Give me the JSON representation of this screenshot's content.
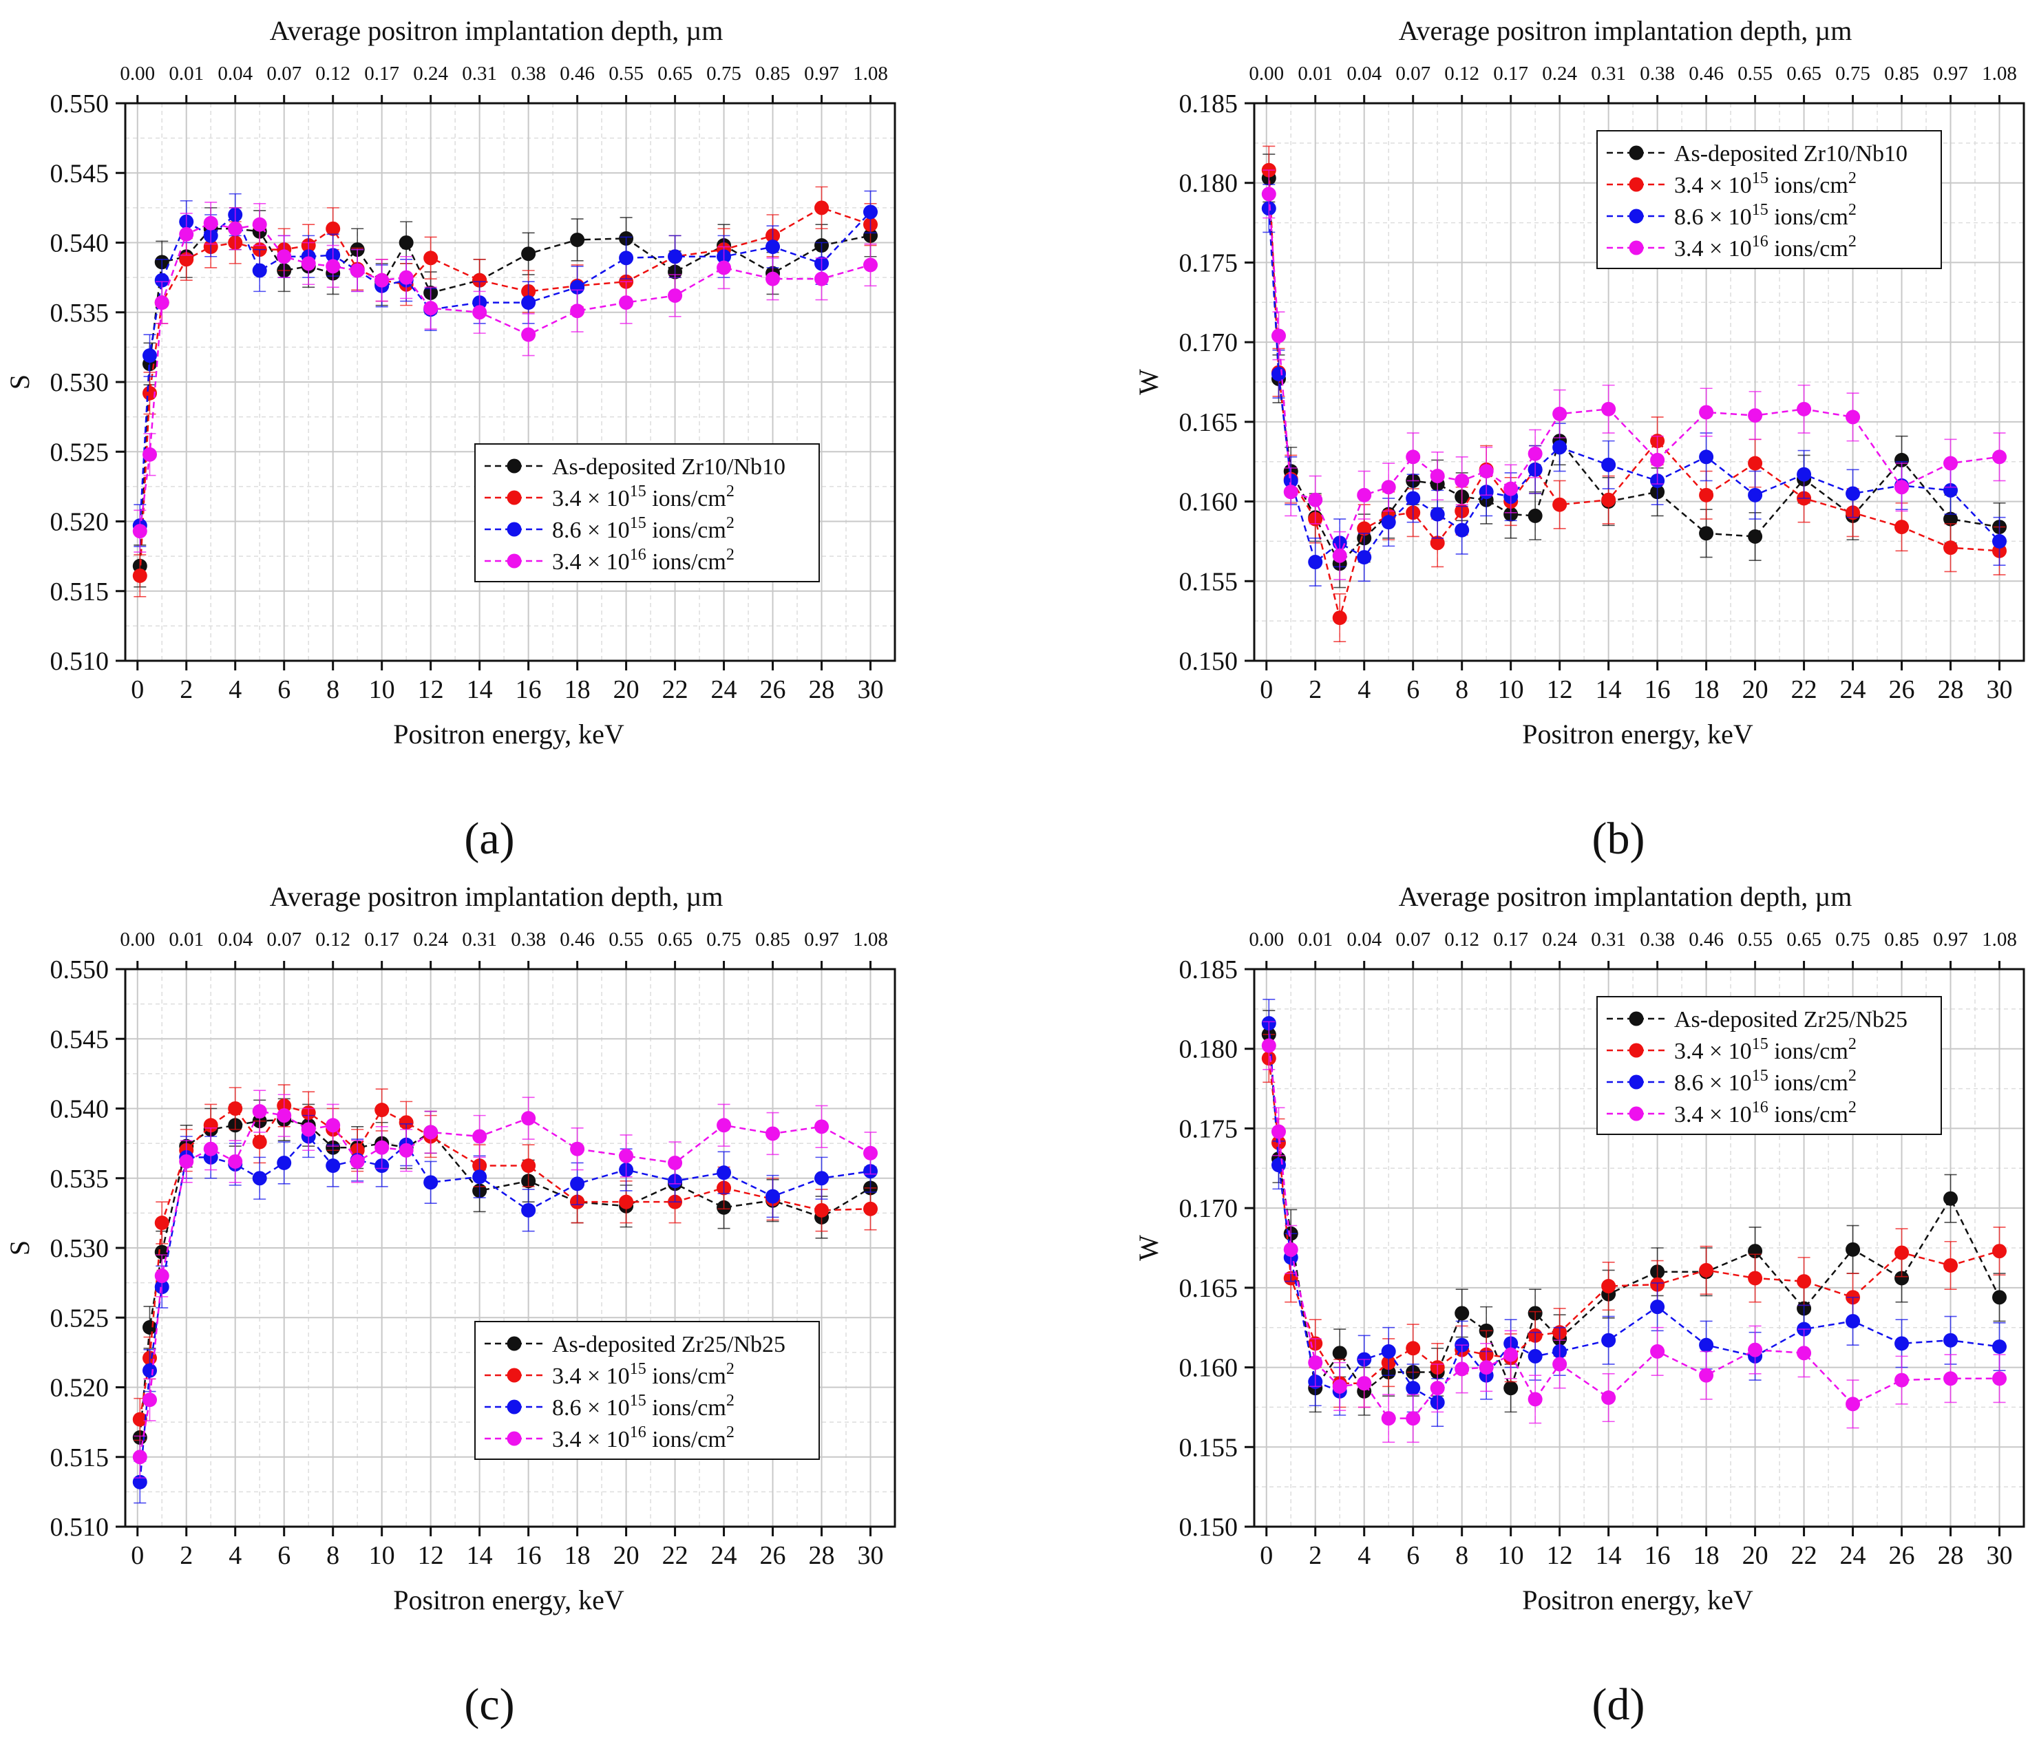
{
  "chart_data": [
    {
      "type": "scatter",
      "panel_label": "(a)",
      "title_top_axis": "Average positron implantation depth, µm",
      "top_tick_labels": [
        "0.00",
        "0.01",
        "0.04",
        "0.07",
        "0.12",
        "0.17",
        "0.24",
        "0.31",
        "0.38",
        "0.46",
        "0.55",
        "0.65",
        "0.75",
        "0.85",
        "0.97",
        "1.08"
      ],
      "xlabel": "Positron energy, keV",
      "ylabel": "S",
      "xlim": [
        -0.5,
        31
      ],
      "ylim": [
        0.51,
        0.55
      ],
      "x_ticks": [
        0,
        2,
        4,
        6,
        8,
        10,
        12,
        14,
        16,
        18,
        20,
        22,
        24,
        26,
        28,
        30
      ],
      "y_ticks": [
        "0.510",
        "0.515",
        "0.520",
        "0.525",
        "0.530",
        "0.535",
        "0.540",
        "0.545",
        "0.550"
      ],
      "legend_position": "center-right",
      "x": [
        0.1,
        0.5,
        1,
        2,
        3,
        4,
        5,
        6,
        7,
        8,
        9,
        10,
        11,
        12,
        14,
        16,
        18,
        20,
        22,
        24,
        26,
        28,
        30
      ],
      "series": [
        {
          "name": "As-deposited Zr10/Nb10",
          "legend_main": "As-deposited Zr10/Nb10",
          "legend_sup": "",
          "legend_suffix": "",
          "color": "#111111",
          "values": [
            0.5168,
            0.5313,
            0.5386,
            0.539,
            0.541,
            0.541,
            0.5408,
            0.538,
            0.5383,
            0.5378,
            0.5395,
            0.537,
            0.54,
            0.5364,
            0.5373,
            0.5392,
            0.5402,
            0.5403,
            0.5379,
            0.5398,
            0.5378,
            0.5398,
            0.5405
          ]
        },
        {
          "name": "3.4 × 10^15 ions/cm^2",
          "legend_main": "3.4 × 10",
          "legend_sup": "15",
          "legend_suffix": " ions/cm",
          "legend_sup2": "2",
          "color": "#ee1111",
          "values": [
            0.5161,
            0.5292,
            0.5357,
            0.5388,
            0.5397,
            0.54,
            0.5395,
            0.5395,
            0.5398,
            0.541,
            0.5381,
            0.5373,
            0.537,
            0.5389,
            0.5373,
            0.5365,
            0.5369,
            0.5372,
            0.539,
            0.5395,
            0.5405,
            0.5425,
            0.5413
          ]
        },
        {
          "name": "8.6 × 10^15 ions/cm^2",
          "legend_main": "8.6 × 10",
          "legend_sup": "15",
          "legend_suffix": " ions/cm",
          "legend_sup2": "2",
          "color": "#1111ee",
          "values": [
            0.5197,
            0.5319,
            0.5373,
            0.5415,
            0.5405,
            0.542,
            0.538,
            0.539,
            0.539,
            0.5391,
            0.538,
            0.5369,
            0.5373,
            0.5352,
            0.5357,
            0.5357,
            0.5368,
            0.5389,
            0.539,
            0.539,
            0.5397,
            0.5385,
            0.5422
          ]
        },
        {
          "name": "3.4 × 10^16 ions/cm^2",
          "legend_main": "3.4 × 10",
          "legend_sup": "16",
          "legend_suffix": " ions/cm",
          "legend_sup2": "2",
          "color": "#ee11ee",
          "values": [
            0.5193,
            0.5248,
            0.5357,
            0.5406,
            0.5414,
            0.541,
            0.5413,
            0.539,
            0.5385,
            0.5383,
            0.538,
            0.5373,
            0.5375,
            0.5353,
            0.535,
            0.5334,
            0.5351,
            0.5357,
            0.5362,
            0.5382,
            0.5374,
            0.5374,
            0.5384
          ]
        }
      ],
      "error": 0.0015
    },
    {
      "type": "scatter",
      "panel_label": "(b)",
      "title_top_axis": "Average positron implantation depth, µm",
      "top_tick_labels": [
        "0.00",
        "0.01",
        "0.04",
        "0.07",
        "0.12",
        "0.17",
        "0.24",
        "0.31",
        "0.38",
        "0.46",
        "0.55",
        "0.65",
        "0.75",
        "0.85",
        "0.97",
        "1.08"
      ],
      "xlabel": "Positron energy, keV",
      "ylabel": "W",
      "xlim": [
        -0.5,
        31
      ],
      "ylim": [
        0.15,
        0.185
      ],
      "x_ticks": [
        0,
        2,
        4,
        6,
        8,
        10,
        12,
        14,
        16,
        18,
        20,
        22,
        24,
        26,
        28,
        30
      ],
      "y_ticks": [
        "0.150",
        "0.155",
        "0.160",
        "0.165",
        "0.170",
        "0.175",
        "0.180",
        "0.185"
      ],
      "legend_position": "top-right",
      "x": [
        0.1,
        0.5,
        1,
        2,
        3,
        4,
        5,
        6,
        7,
        8,
        9,
        10,
        11,
        12,
        14,
        16,
        18,
        20,
        22,
        24,
        26,
        28,
        30
      ],
      "series": [
        {
          "name": "As-deposited Zr10/Nb10",
          "legend_main": "As-deposited Zr10/Nb10",
          "legend_sup": "",
          "legend_suffix": "",
          "color": "#111111",
          "values": [
            0.1803,
            0.1677,
            0.1619,
            0.159,
            0.1561,
            0.1577,
            0.1592,
            0.1613,
            0.1611,
            0.1603,
            0.1601,
            0.1592,
            0.1591,
            0.1638,
            0.16,
            0.1606,
            0.158,
            0.1578,
            0.1614,
            0.1591,
            0.1626,
            0.1589,
            0.1584
          ]
        },
        {
          "name": "3.4 × 10^15 ions/cm^2",
          "legend_main": "3.4 × 10",
          "legend_sup": "15",
          "legend_suffix": " ions/cm",
          "legend_sup2": "2",
          "color": "#ee1111",
          "values": [
            0.1808,
            0.1681,
            0.1614,
            0.1589,
            0.1527,
            0.1583,
            0.1591,
            0.1593,
            0.1574,
            0.1594,
            0.162,
            0.16,
            0.162,
            0.1598,
            0.1601,
            0.1638,
            0.1604,
            0.1624,
            0.1602,
            0.1593,
            0.1584,
            0.1571,
            0.1569
          ]
        },
        {
          "name": "8.6 × 10^15 ions/cm^2",
          "legend_main": "8.6 × 10",
          "legend_sup": "15",
          "legend_suffix": " ions/cm",
          "legend_sup2": "2",
          "color": "#1111ee",
          "values": [
            0.1784,
            0.168,
            0.1613,
            0.1562,
            0.1574,
            0.1565,
            0.1587,
            0.1602,
            0.1592,
            0.1582,
            0.1606,
            0.1603,
            0.162,
            0.1634,
            0.1623,
            0.1613,
            0.1628,
            0.1604,
            0.1617,
            0.1605,
            0.161,
            0.1607,
            0.1575
          ]
        },
        {
          "name": "3.4 × 10^16 ions/cm^2",
          "legend_main": "3.4 × 10",
          "legend_sup": "16",
          "legend_suffix": " ions/cm",
          "legend_sup2": "2",
          "color": "#ee11ee",
          "values": [
            0.1793,
            0.1704,
            0.1606,
            0.1601,
            0.1566,
            0.1604,
            0.1609,
            0.1628,
            0.1616,
            0.1613,
            0.1619,
            0.1608,
            0.163,
            0.1655,
            0.1658,
            0.1626,
            0.1656,
            0.1654,
            0.1658,
            0.1653,
            0.1609,
            0.1624,
            0.1628
          ]
        }
      ],
      "error": 0.0015
    },
    {
      "type": "scatter",
      "panel_label": "(c)",
      "title_top_axis": "Average positron implantation depth, µm",
      "top_tick_labels": [
        "0.00",
        "0.01",
        "0.04",
        "0.07",
        "0.12",
        "0.17",
        "0.24",
        "0.31",
        "0.38",
        "0.46",
        "0.55",
        "0.65",
        "0.75",
        "0.85",
        "0.97",
        "1.08"
      ],
      "xlabel": "Positron energy, keV",
      "ylabel": "S",
      "xlim": [
        -0.5,
        31
      ],
      "ylim": [
        0.51,
        0.55
      ],
      "x_ticks": [
        0,
        2,
        4,
        6,
        8,
        10,
        12,
        14,
        16,
        18,
        20,
        22,
        24,
        26,
        28,
        30
      ],
      "y_ticks": [
        "0.510",
        "0.515",
        "0.520",
        "0.525",
        "0.530",
        "0.535",
        "0.540",
        "0.545",
        "0.550"
      ],
      "legend_position": "lower-right",
      "x": [
        0.1,
        0.5,
        1,
        2,
        3,
        4,
        5,
        6,
        7,
        8,
        9,
        10,
        11,
        12,
        14,
        16,
        18,
        20,
        22,
        24,
        26,
        28,
        30
      ],
      "series": [
        {
          "name": "As-deposited Zr25/Nb25",
          "legend_main": "As-deposited Zr25/Nb25",
          "legend_sup": "",
          "legend_suffix": "",
          "color": "#111111",
          "values": [
            0.5164,
            0.5243,
            0.5297,
            0.5373,
            0.5385,
            0.5388,
            0.5391,
            0.5392,
            0.5388,
            0.5372,
            0.5372,
            0.5375,
            0.5372,
            0.5383,
            0.5341,
            0.5348,
            0.5333,
            0.533,
            0.5346,
            0.5329,
            0.5334,
            0.5322,
            0.5343
          ]
        },
        {
          "name": "3.4 × 10^15 ions/cm^2",
          "legend_main": "3.4 × 10",
          "legend_sup": "15",
          "legend_suffix": " ions/cm",
          "legend_sup2": "2",
          "color": "#ee1111",
          "values": [
            0.5177,
            0.5221,
            0.5318,
            0.537,
            0.5388,
            0.54,
            0.5376,
            0.5402,
            0.5397,
            0.5385,
            0.537,
            0.5399,
            0.539,
            0.538,
            0.5359,
            0.5359,
            0.5333,
            0.5333,
            0.5333,
            0.5343,
            0.5335,
            0.5327,
            0.5328
          ]
        },
        {
          "name": "8.6 × 10^15 ions/cm^2",
          "legend_main": "8.6 × 10",
          "legend_sup": "15",
          "legend_suffix": " ions/cm",
          "legend_sup2": "2",
          "color": "#1111ee",
          "values": [
            0.5132,
            0.5212,
            0.5272,
            0.5365,
            0.5365,
            0.536,
            0.535,
            0.5361,
            0.538,
            0.5359,
            0.5363,
            0.5359,
            0.5374,
            0.5347,
            0.5351,
            0.5327,
            0.5346,
            0.5356,
            0.5348,
            0.5354,
            0.5337,
            0.535,
            0.5355
          ]
        },
        {
          "name": "3.4 × 10^16 ions/cm^2",
          "legend_main": "3.4 × 10",
          "legend_sup": "16",
          "legend_suffix": " ions/cm",
          "legend_sup2": "2",
          "color": "#ee11ee",
          "values": [
            0.515,
            0.5191,
            0.528,
            0.5362,
            0.5371,
            0.5362,
            0.5398,
            0.5395,
            0.5385,
            0.5388,
            0.5362,
            0.5372,
            0.537,
            0.5383,
            0.538,
            0.5393,
            0.5371,
            0.5366,
            0.5361,
            0.5388,
            0.5382,
            0.5387,
            0.5368
          ]
        }
      ],
      "error": 0.0015
    },
    {
      "type": "scatter",
      "panel_label": "(d)",
      "title_top_axis": "Average positron implantation depth, µm",
      "top_tick_labels": [
        "0.00",
        "0.01",
        "0.04",
        "0.07",
        "0.12",
        "0.17",
        "0.24",
        "0.31",
        "0.38",
        "0.46",
        "0.55",
        "0.65",
        "0.75",
        "0.85",
        "0.97",
        "1.08"
      ],
      "xlabel": "Positron energy, keV",
      "ylabel": "W",
      "xlim": [
        -0.5,
        31
      ],
      "ylim": [
        0.15,
        0.185
      ],
      "x_ticks": [
        0,
        2,
        4,
        6,
        8,
        10,
        12,
        14,
        16,
        18,
        20,
        22,
        24,
        26,
        28,
        30
      ],
      "y_ticks": [
        "0.150",
        "0.155",
        "0.160",
        "0.165",
        "0.170",
        "0.175",
        "0.180",
        "0.185"
      ],
      "legend_position": "top-right",
      "x": [
        0.1,
        0.5,
        1,
        2,
        3,
        4,
        5,
        6,
        7,
        8,
        9,
        10,
        11,
        12,
        14,
        16,
        18,
        20,
        22,
        24,
        26,
        28,
        30
      ],
      "series": [
        {
          "name": "As-deposited Zr25/Nb25",
          "legend_main": "As-deposited Zr25/Nb25",
          "legend_sup": "",
          "legend_suffix": "",
          "color": "#111111",
          "values": [
            0.1809,
            0.1731,
            0.1684,
            0.1587,
            0.1609,
            0.1585,
            0.1597,
            0.1597,
            0.1597,
            0.1634,
            0.1623,
            0.1587,
            0.1634,
            0.1618,
            0.1646,
            0.166,
            0.166,
            0.1673,
            0.1637,
            0.1674,
            0.1656,
            0.1706,
            0.1644
          ]
        },
        {
          "name": "3.4 × 10^15 ions/cm^2",
          "legend_main": "3.4 × 10",
          "legend_sup": "15",
          "legend_suffix": " ions/cm",
          "legend_sup2": "2",
          "color": "#ee1111",
          "values": [
            0.1794,
            0.1741,
            0.1656,
            0.1615,
            0.159,
            0.159,
            0.1603,
            0.1612,
            0.16,
            0.1611,
            0.1608,
            0.1606,
            0.162,
            0.1622,
            0.1651,
            0.1652,
            0.1661,
            0.1656,
            0.1654,
            0.1644,
            0.1672,
            0.1664,
            0.1673
          ]
        },
        {
          "name": "8.6 × 10^15 ions/cm^2",
          "legend_main": "8.6 × 10",
          "legend_sup": "15",
          "legend_suffix": " ions/cm",
          "legend_sup2": "2",
          "color": "#1111ee",
          "values": [
            0.1816,
            0.1727,
            0.1669,
            0.1591,
            0.1585,
            0.1605,
            0.161,
            0.1587,
            0.1578,
            0.1614,
            0.1595,
            0.1615,
            0.1607,
            0.161,
            0.1617,
            0.1638,
            0.1614,
            0.1607,
            0.1624,
            0.1629,
            0.1615,
            0.1617,
            0.1613
          ]
        },
        {
          "name": "3.4 × 10^16 ions/cm^2",
          "legend_main": "3.4 × 10",
          "legend_sup": "16",
          "legend_suffix": " ions/cm",
          "legend_sup2": "2",
          "color": "#ee11ee",
          "values": [
            0.1802,
            0.1748,
            0.1674,
            0.1603,
            0.1588,
            0.159,
            0.1568,
            0.1568,
            0.1587,
            0.1599,
            0.16,
            0.1608,
            0.158,
            0.1602,
            0.1581,
            0.161,
            0.1595,
            0.1611,
            0.1609,
            0.1577,
            0.1592,
            0.1593,
            0.1593
          ]
        }
      ],
      "error": 0.0015
    }
  ]
}
